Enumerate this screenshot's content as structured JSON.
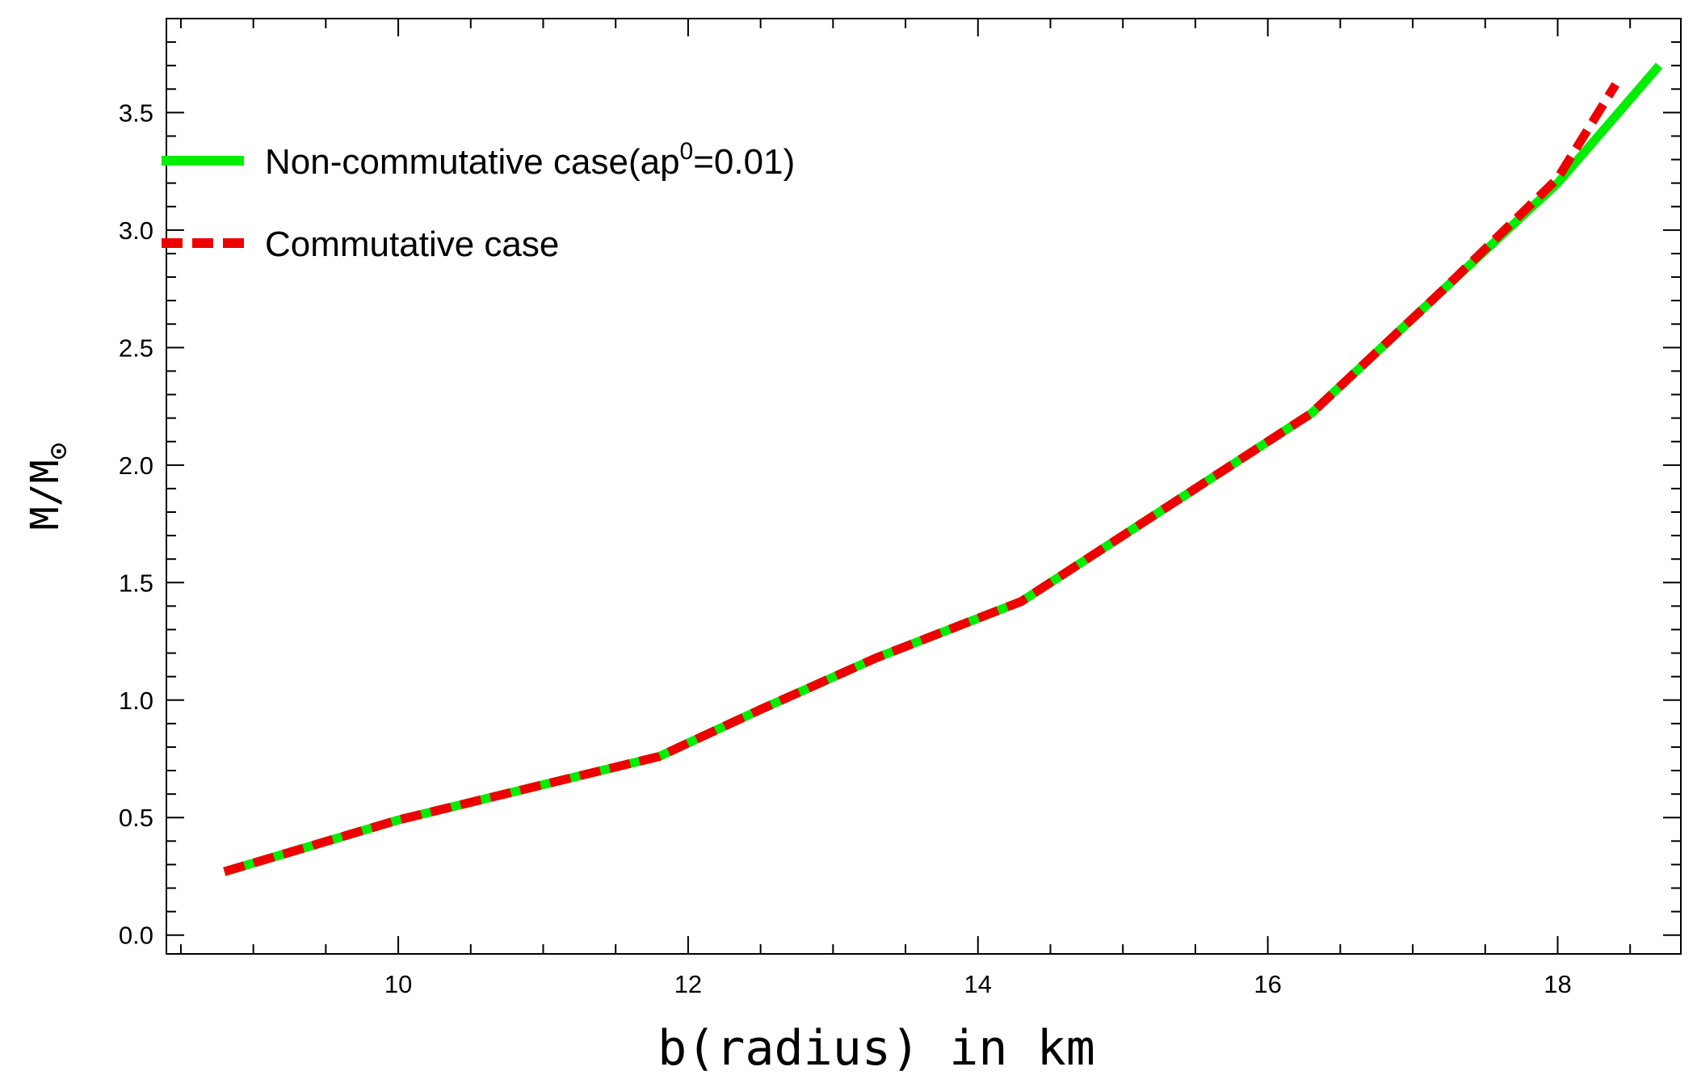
{
  "chart_data": {
    "type": "line",
    "title": "",
    "xlabel": "b(radius) in km",
    "ylabel": "M/M",
    "ylabel_subscript": "⊙",
    "xlim": [
      8.4,
      18.85
    ],
    "ylim": [
      -0.08,
      3.9
    ],
    "x_ticks": [
      10,
      12,
      14,
      16,
      18
    ],
    "y_ticks": [
      0.0,
      0.5,
      1.0,
      1.5,
      2.0,
      2.5,
      3.0,
      3.5
    ],
    "y_tick_labels": [
      "0.0",
      "0.5",
      "1.0",
      "1.5",
      "2.0",
      "2.5",
      "3.0",
      "3.5"
    ],
    "grid": false,
    "legend_position": "top-left",
    "series": [
      {
        "name": "Non-commutative case(ap0=0.01)",
        "label_main": "Non-commutative case(ap",
        "label_sup": "0",
        "label_end": "=0.01)",
        "color": "#00ee00",
        "style": "solid",
        "x": [
          8.8,
          10,
          11,
          11.8,
          12.5,
          13.3,
          14.3,
          15.3,
          16.3,
          17.2,
          18.0,
          18.7
        ],
        "y": [
          0.27,
          0.49,
          0.64,
          0.76,
          0.96,
          1.18,
          1.42,
          1.82,
          2.22,
          2.74,
          3.2,
          3.7
        ]
      },
      {
        "name": "Commutative case",
        "color": "#ee0000",
        "style": "dashed",
        "x": [
          8.8,
          10,
          11,
          11.8,
          12.5,
          13.3,
          14.3,
          15.3,
          16.3,
          17.2,
          18.0,
          18.4
        ],
        "y": [
          0.27,
          0.49,
          0.64,
          0.76,
          0.96,
          1.18,
          1.42,
          1.82,
          2.22,
          2.74,
          3.22,
          3.62
        ]
      }
    ]
  }
}
